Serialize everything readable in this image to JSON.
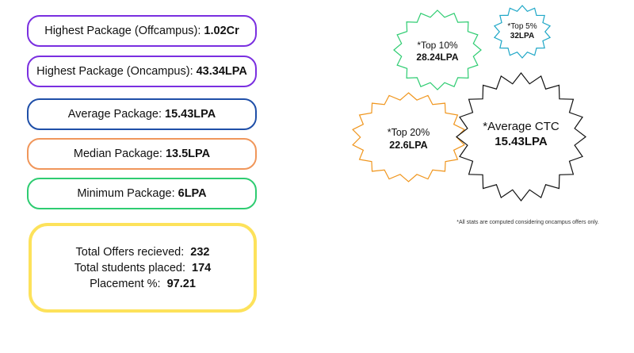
{
  "packages": [
    {
      "label": "Highest Package (Offcampus):",
      "value": "1.02Cr",
      "border": "#7a2fe0"
    },
    {
      "label": "Highest Package (Oncampus):",
      "value": "43.34LPA",
      "border": "#7a2fe0"
    },
    {
      "label": "Average Package:",
      "value": "15.43LPA",
      "border": "#1f4fa8"
    },
    {
      "label": "Median Package:",
      "value": "13.5LPA",
      "border": "#f0965a"
    },
    {
      "label": "Minimum Package:",
      "value": "6LPA",
      "border": "#2ecc71"
    }
  ],
  "totals": {
    "offers_label": "Total Offers recieved:",
    "offers_value": "232",
    "students_label": "Total students placed:",
    "students_value": "174",
    "percent_label": "Placement %:",
    "percent_value": "97.21",
    "border": "#fde25b"
  },
  "stars": {
    "top10": {
      "label": "*Top 10%",
      "value": "28.24LPA",
      "stroke": "#2ecc71"
    },
    "top5": {
      "label": "*Top 5%",
      "value": "32LPA",
      "stroke": "#1fa7c7"
    },
    "top20": {
      "label": "*Top 20%",
      "value": "22.6LPA",
      "stroke": "#f0961e"
    },
    "avg": {
      "label": "*Average CTC",
      "value": "15.43LPA",
      "stroke": "#111111"
    }
  },
  "footnote": "*All stats are computed considering oncampus offers only."
}
